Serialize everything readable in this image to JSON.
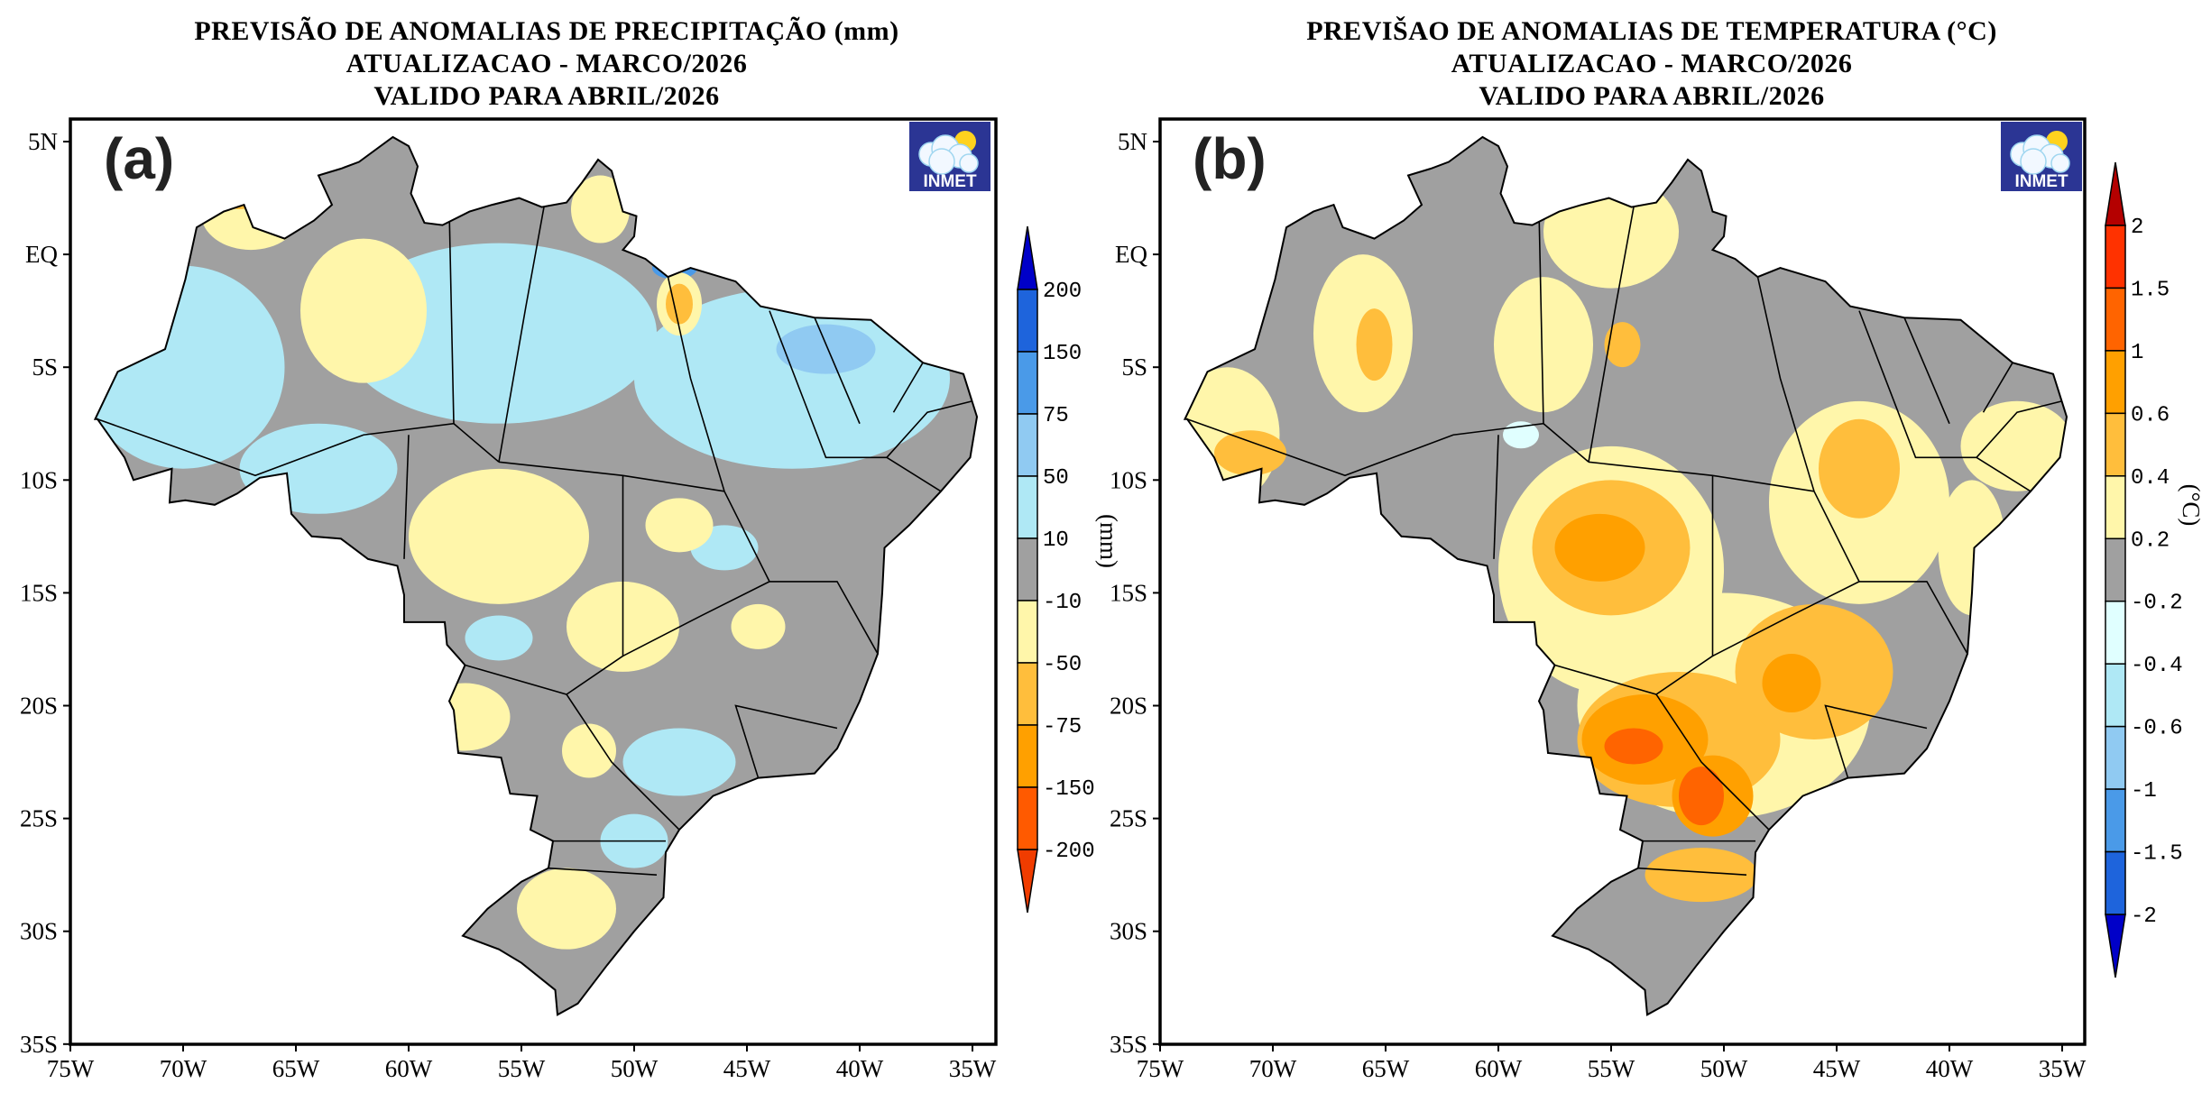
{
  "panels": [
    {
      "id": "a",
      "label": "(a)",
      "title_lines": [
        "PREVISÃO DE ANOMALIAS DE PRECIPITAÇÃO (mm)",
        "ATUALIZACAO - MARCO/2026",
        "VALIDO PARA ABRIL/2026"
      ],
      "logo_text": "INMET",
      "colorbar": {
        "unit": "(mm)",
        "levels": [
          "200",
          "150",
          "75",
          "50",
          "10",
          "-10",
          "-50",
          "-75",
          "-150",
          "-200"
        ],
        "colors": [
          "#1e64dc",
          "#4a9ae8",
          "#90caf2",
          "#afe8f5",
          "#a0a0a0",
          "#fff6aa",
          "#ffbe3c",
          "#ffa000",
          "#ff5a00"
        ],
        "over_color": "#0000c8",
        "under_color": "#f03c00"
      }
    },
    {
      "id": "b",
      "label": "(b)",
      "title_lines": [
        "PREVIŠAO DE ANOMALIAS DE TEMPERATURA (°C)",
        "ATUALIZACAO - MARCO/2026",
        "VALIDO PARA ABRIL/2026"
      ],
      "logo_text": "INMET",
      "colorbar": {
        "unit": "(°C)",
        "levels": [
          "2",
          "1.5",
          "1",
          "0.6",
          "0.4",
          "0.2",
          "-0.2",
          "-0.4",
          "-0.6",
          "-1",
          "-1.5",
          "-2"
        ],
        "colors": [
          "#ff3200",
          "#ff6400",
          "#ffa000",
          "#ffbe3c",
          "#fff6aa",
          "#a0a0a0",
          "#e0ffff",
          "#afe8f5",
          "#90caf2",
          "#4a9ae8",
          "#1e64dc"
        ],
        "over_color": "#b40000",
        "under_color": "#0000c8"
      }
    }
  ],
  "axes": {
    "lat_ticks": [
      "5N",
      "EQ",
      "5S",
      "10S",
      "15S",
      "20S",
      "25S",
      "30S",
      "35S"
    ],
    "lon_ticks": [
      "75W",
      "70W",
      "65W",
      "60W",
      "55W",
      "50W",
      "45W",
      "40W",
      "35W"
    ]
  }
}
